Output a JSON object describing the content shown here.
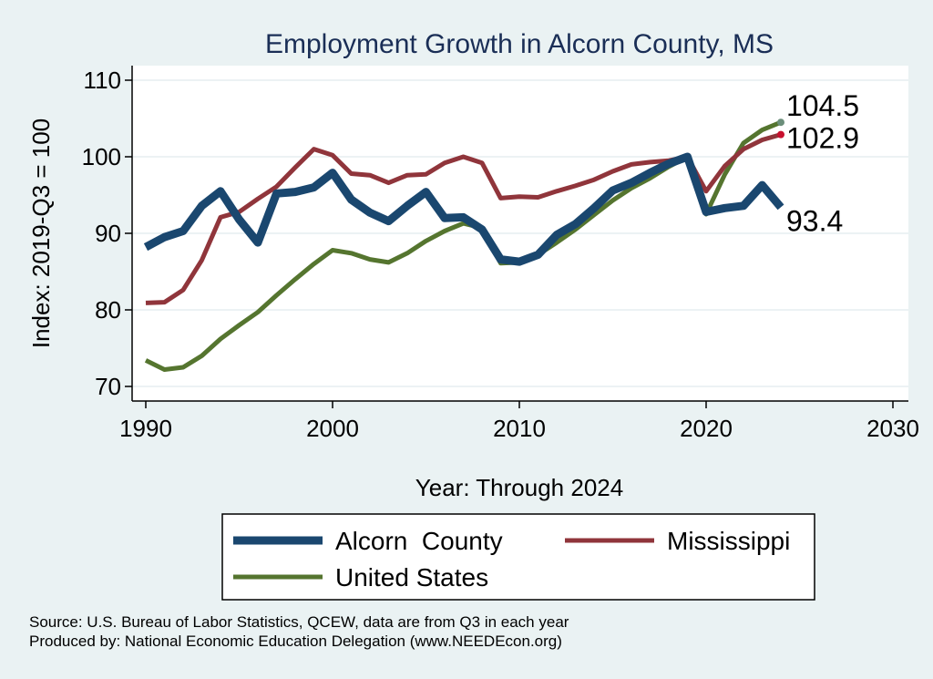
{
  "chart_data": {
    "type": "line",
    "title": "Employment Growth in Alcorn County, MS",
    "xlabel": "Year: Through 2024",
    "ylabel": "Index: 2019-Q3 = 100",
    "xlim": [
      1990,
      2030
    ],
    "ylim": [
      70,
      110
    ],
    "xticks": [
      1990,
      2000,
      2010,
      2020,
      2030
    ],
    "yticks": [
      70,
      80,
      90,
      100,
      110
    ],
    "grid": true,
    "legend_position": "bottom",
    "x": [
      1990,
      1991,
      1992,
      1993,
      1994,
      1995,
      1996,
      1997,
      1998,
      1999,
      2000,
      2001,
      2002,
      2003,
      2004,
      2005,
      2006,
      2007,
      2008,
      2009,
      2010,
      2011,
      2012,
      2013,
      2014,
      2015,
      2016,
      2017,
      2018,
      2019,
      2020,
      2021,
      2022,
      2023,
      2024
    ],
    "series": [
      {
        "name": "Alcorn  County",
        "color": "#1a476f",
        "values": [
          88.2,
          89.5,
          90.3,
          93.6,
          95.5,
          91.8,
          88.8,
          95.2,
          95.4,
          96.0,
          97.9,
          94.4,
          92.7,
          91.6,
          93.6,
          95.4,
          92.0,
          92.1,
          90.5,
          86.6,
          86.3,
          87.2,
          89.8,
          91.2,
          93.3,
          95.6,
          96.6,
          97.9,
          99.1,
          100.0,
          92.8,
          93.3,
          93.6,
          96.3,
          93.4
        ],
        "end_label": "93.4"
      },
      {
        "name": "Mississippi",
        "color": "#90353b",
        "values": [
          80.9,
          81.0,
          82.6,
          86.5,
          92.1,
          92.8,
          94.5,
          96.1,
          98.6,
          101.0,
          100.2,
          97.8,
          97.6,
          96.6,
          97.6,
          97.7,
          99.2,
          100.0,
          99.2,
          94.6,
          94.8,
          94.7,
          95.5,
          96.2,
          97.0,
          98.1,
          99.0,
          99.3,
          99.5,
          100.0,
          95.5,
          98.8,
          101.0,
          102.2,
          102.9
        ],
        "end_label": "102.9"
      },
      {
        "name": "United States",
        "color": "#55752f",
        "values": [
          73.4,
          72.2,
          72.5,
          74.0,
          76.2,
          78.0,
          79.7,
          81.9,
          84.0,
          86.0,
          87.8,
          87.4,
          86.6,
          86.2,
          87.4,
          89.0,
          90.3,
          91.3,
          90.7,
          86.1,
          86.2,
          87.2,
          88.8,
          90.5,
          92.4,
          94.3,
          95.9,
          97.2,
          98.7,
          100.0,
          92.5,
          97.7,
          101.8,
          103.5,
          104.5
        ],
        "end_label": "104.5"
      }
    ]
  },
  "footer": {
    "source": "Source: U.S. Bureau of Labor Statistics, QCEW, data are from Q3 in each year",
    "produced": "Produced by: National Economic Education Delegation (www.NEEDEcon.org)"
  }
}
